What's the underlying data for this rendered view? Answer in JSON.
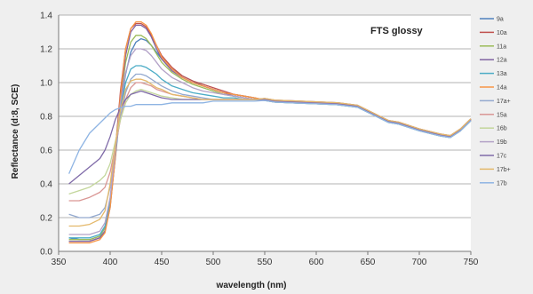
{
  "chart_data": {
    "type": "line",
    "title": "FTS glossy",
    "xlabel": "wavelength (nm)",
    "ylabel": "Reflectance (d:8, SCE)",
    "xlim": [
      350,
      750
    ],
    "ylim": [
      0,
      1.4
    ],
    "xticks": [
      350,
      400,
      450,
      500,
      550,
      600,
      650,
      700,
      750
    ],
    "yticks": [
      0.0,
      0.2,
      0.4,
      0.6,
      0.8,
      1.0,
      1.2,
      1.4
    ],
    "ytick_labels": [
      "0.0",
      "0.2",
      "0.4",
      "0.6",
      "0.8",
      "1.0",
      "1.2",
      "1.4"
    ],
    "grid": "horizontal",
    "legend_position": "right",
    "tail": {
      "x": [
        550,
        560,
        580,
        600,
        620,
        640,
        650,
        660,
        670,
        680,
        690,
        700,
        720,
        730,
        740,
        750
      ],
      "y": [
        0.9,
        0.89,
        0.885,
        0.88,
        0.875,
        0.86,
        0.83,
        0.8,
        0.77,
        0.76,
        0.74,
        0.72,
        0.69,
        0.68,
        0.72,
        0.78
      ]
    },
    "x": [
      360,
      370,
      380,
      390,
      395,
      400,
      405,
      410,
      415,
      420,
      425,
      430,
      435,
      440,
      445,
      450,
      460,
      470,
      480,
      490,
      500,
      510,
      520,
      530,
      540
    ],
    "series": [
      {
        "name": "9a",
        "color": "#4f81bd",
        "y": [
          0.08,
          0.07,
          0.07,
          0.09,
          0.14,
          0.28,
          0.55,
          0.85,
          1.05,
          1.18,
          1.24,
          1.26,
          1.25,
          1.22,
          1.18,
          1.14,
          1.08,
          1.04,
          1.01,
          0.98,
          0.96,
          0.94,
          0.93,
          0.92,
          0.91
        ]
      },
      {
        "name": "10a",
        "color": "#c0504d",
        "y": [
          0.06,
          0.06,
          0.06,
          0.08,
          0.12,
          0.28,
          0.6,
          0.95,
          1.2,
          1.32,
          1.35,
          1.35,
          1.33,
          1.28,
          1.22,
          1.16,
          1.09,
          1.04,
          1.01,
          0.99,
          0.97,
          0.95,
          0.93,
          0.92,
          0.91
        ]
      },
      {
        "name": "11a",
        "color": "#9bbb59",
        "y": [
          0.07,
          0.07,
          0.07,
          0.09,
          0.14,
          0.3,
          0.6,
          0.9,
          1.12,
          1.24,
          1.28,
          1.28,
          1.26,
          1.22,
          1.17,
          1.12,
          1.06,
          1.02,
          0.99,
          0.97,
          0.95,
          0.93,
          0.92,
          0.91,
          0.9
        ]
      },
      {
        "name": "12a",
        "color": "#8064a2",
        "y": [
          0.06,
          0.06,
          0.06,
          0.08,
          0.12,
          0.26,
          0.56,
          0.9,
          1.16,
          1.3,
          1.34,
          1.34,
          1.32,
          1.27,
          1.2,
          1.14,
          1.07,
          1.03,
          1.0,
          0.98,
          0.96,
          0.94,
          0.92,
          0.91,
          0.9
        ]
      },
      {
        "name": "13a",
        "color": "#4bacc6",
        "y": [
          0.08,
          0.08,
          0.08,
          0.1,
          0.15,
          0.3,
          0.58,
          0.84,
          1.0,
          1.08,
          1.1,
          1.1,
          1.09,
          1.07,
          1.05,
          1.02,
          0.98,
          0.96,
          0.94,
          0.93,
          0.92,
          0.91,
          0.91,
          0.9,
          0.9
        ]
      },
      {
        "name": "14a",
        "color": "#f79646",
        "y": [
          0.05,
          0.05,
          0.05,
          0.07,
          0.11,
          0.26,
          0.56,
          0.92,
          1.2,
          1.32,
          1.36,
          1.36,
          1.34,
          1.29,
          1.22,
          1.15,
          1.08,
          1.03,
          1.0,
          0.98,
          0.96,
          0.94,
          0.93,
          0.92,
          0.91
        ]
      },
      {
        "name": "17a+",
        "color": "#93a9cf",
        "y": [
          0.22,
          0.2,
          0.2,
          0.22,
          0.26,
          0.38,
          0.6,
          0.8,
          0.94,
          1.02,
          1.05,
          1.05,
          1.04,
          1.02,
          1.0,
          0.98,
          0.95,
          0.93,
          0.92,
          0.91,
          0.9,
          0.9,
          0.9,
          0.9,
          0.9
        ]
      },
      {
        "name": "15a",
        "color": "#d99694",
        "y": [
          0.3,
          0.3,
          0.32,
          0.35,
          0.38,
          0.47,
          0.62,
          0.78,
          0.9,
          0.97,
          1.0,
          1.0,
          0.99,
          0.98,
          0.96,
          0.95,
          0.93,
          0.92,
          0.91,
          0.9,
          0.9,
          0.9,
          0.9,
          0.9,
          0.9
        ]
      },
      {
        "name": "16b",
        "color": "#c3d69b",
        "y": [
          0.34,
          0.36,
          0.38,
          0.42,
          0.45,
          0.52,
          0.65,
          0.78,
          0.88,
          0.93,
          0.95,
          0.96,
          0.95,
          0.94,
          0.93,
          0.92,
          0.91,
          0.9,
          0.9,
          0.9,
          0.9,
          0.9,
          0.9,
          0.9,
          0.9
        ]
      },
      {
        "name": "19b",
        "color": "#b3a2c7",
        "y": [
          0.1,
          0.1,
          0.1,
          0.12,
          0.17,
          0.32,
          0.6,
          0.88,
          1.06,
          1.16,
          1.2,
          1.2,
          1.19,
          1.16,
          1.12,
          1.08,
          1.03,
          1.0,
          0.97,
          0.95,
          0.94,
          0.93,
          0.92,
          0.91,
          0.9
        ]
      },
      {
        "name": "17c",
        "color": "#7f6aa8",
        "y": [
          0.4,
          0.45,
          0.5,
          0.55,
          0.6,
          0.68,
          0.78,
          0.85,
          0.9,
          0.93,
          0.94,
          0.95,
          0.94,
          0.93,
          0.92,
          0.91,
          0.9,
          0.9,
          0.9,
          0.9,
          0.9,
          0.9,
          0.9,
          0.9,
          0.9
        ]
      },
      {
        "name": "17b+",
        "color": "#e4b86a",
        "y": [
          0.15,
          0.15,
          0.16,
          0.19,
          0.24,
          0.4,
          0.63,
          0.84,
          0.96,
          1.01,
          1.02,
          1.02,
          1.01,
          0.99,
          0.97,
          0.96,
          0.93,
          0.92,
          0.91,
          0.9,
          0.9,
          0.9,
          0.9,
          0.9,
          0.9
        ]
      },
      {
        "name": "17b",
        "color": "#8eb4e3",
        "y": [
          0.46,
          0.6,
          0.7,
          0.76,
          0.79,
          0.82,
          0.84,
          0.85,
          0.86,
          0.86,
          0.87,
          0.87,
          0.87,
          0.87,
          0.87,
          0.87,
          0.88,
          0.88,
          0.88,
          0.88,
          0.89,
          0.89,
          0.89,
          0.89,
          0.89
        ]
      }
    ]
  }
}
